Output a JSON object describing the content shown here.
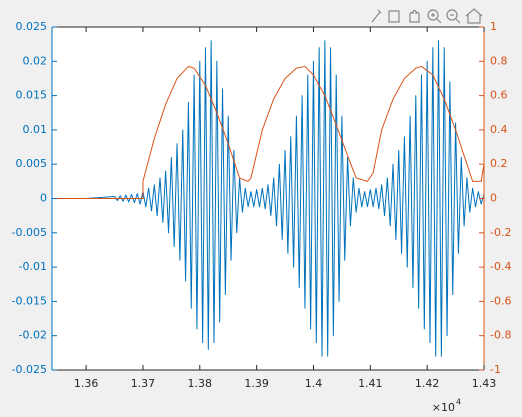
{
  "chart_data": {
    "type": "line",
    "xlim": [
      13540,
      14300
    ],
    "xticks": [
      {
        "value": 13600,
        "label": "1.36"
      },
      {
        "value": 13700,
        "label": "1.37"
      },
      {
        "value": 13800,
        "label": "1.38"
      },
      {
        "value": 13900,
        "label": "1.39"
      },
      {
        "value": 14000,
        "label": "1.4"
      },
      {
        "value": 14100,
        "label": "1.41"
      },
      {
        "value": 14200,
        "label": "1.42"
      },
      {
        "value": 14300,
        "label": "1.43"
      }
    ],
    "x_exponent_base": "×10",
    "x_exponent_power": "4",
    "ylim": [
      -0.025,
      0.025
    ],
    "yticks": [
      -0.025,
      -0.02,
      -0.015,
      -0.01,
      -0.005,
      0,
      0.005,
      0.01,
      0.015,
      0.02,
      0.025
    ],
    "y2lim": [
      -1,
      1
    ],
    "y2ticks": [
      -1,
      -0.8,
      -0.6,
      -0.4,
      -0.2,
      0,
      0.2,
      0.4,
      0.6,
      0.8,
      1
    ],
    "left_axis_color": "#0072bd",
    "right_axis_color": "#d95319",
    "series": [
      {
        "color": "#0072bd",
        "x": [
          13540,
          13600,
          13650,
          13655,
          13660,
          13665,
          13670,
          13675,
          13680,
          13685,
          13690,
          13695,
          13700,
          13705,
          13710,
          13715,
          13720,
          13725,
          13730,
          13735,
          13740,
          13745,
          13750,
          13755,
          13760,
          13765,
          13770,
          13775,
          13780,
          13785,
          13790,
          13795,
          13800,
          13805,
          13810,
          13815,
          13820,
          13825,
          13830,
          13835,
          13840,
          13845,
          13850,
          13855,
          13860,
          13865,
          13870,
          13875,
          13880,
          13885,
          13890,
          13895,
          13900,
          13905,
          13910,
          13915,
          13920,
          13925,
          13930,
          13935,
          13940,
          13945,
          13950,
          13955,
          13960,
          13965,
          13970,
          13975,
          13980,
          13985,
          13990,
          13995,
          14000,
          14005,
          14010,
          14015,
          14020,
          14025,
          14030,
          14035,
          14040,
          14045,
          14050,
          14055,
          14060,
          14065,
          14070,
          14075,
          14080,
          14085,
          14090,
          14095,
          14100,
          14105,
          14110,
          14115,
          14120,
          14125,
          14130,
          14135,
          14140,
          14145,
          14150,
          14155,
          14160,
          14165,
          14170,
          14175,
          14180,
          14185,
          14190,
          14195,
          14200,
          14205,
          14210,
          14215,
          14220,
          14225,
          14230,
          14235,
          14240,
          14245,
          14250,
          14255,
          14260,
          14265,
          14270,
          14275,
          14280,
          14285,
          14290,
          14295,
          14300
        ],
        "values": [
          0,
          0,
          0.0003,
          -0.0003,
          0.0004,
          -0.0004,
          0.0005,
          -0.0005,
          0.0006,
          -0.0006,
          0.0007,
          -0.0008,
          0.001,
          -0.0012,
          0.0015,
          -0.0018,
          0.002,
          -0.0025,
          0.003,
          -0.0035,
          0.004,
          -0.005,
          0.006,
          -0.007,
          0.008,
          -0.009,
          0.01,
          -0.012,
          0.014,
          -0.016,
          0.018,
          -0.019,
          0.02,
          -0.021,
          0.022,
          -0.022,
          0.023,
          -0.021,
          0.02,
          -0.018,
          0.016,
          -0.014,
          0.012,
          -0.009,
          0.007,
          -0.005,
          0.003,
          -0.002,
          0.0015,
          -0.0012,
          0.001,
          -0.0012,
          0.0013,
          -0.0012,
          0.0015,
          -0.0015,
          0.002,
          -0.0025,
          0.003,
          -0.004,
          0.005,
          -0.006,
          0.007,
          -0.008,
          0.009,
          -0.01,
          0.012,
          -0.013,
          0.015,
          -0.016,
          0.018,
          -0.019,
          0.02,
          -0.021,
          0.022,
          -0.023,
          0.023,
          -0.023,
          0.022,
          -0.02,
          0.018,
          -0.015,
          0.012,
          -0.009,
          0.006,
          -0.004,
          0.003,
          -0.002,
          0.0015,
          -0.0012,
          0.001,
          -0.0012,
          0.0013,
          -0.0012,
          0.0015,
          -0.0015,
          0.002,
          -0.0025,
          0.003,
          -0.004,
          0.005,
          -0.006,
          0.007,
          -0.008,
          0.009,
          -0.01,
          0.012,
          -0.013,
          0.015,
          -0.016,
          0.018,
          -0.019,
          0.02,
          -0.021,
          0.022,
          -0.023,
          0.023,
          -0.023,
          0.022,
          -0.02,
          0.017,
          -0.014,
          0.011,
          -0.008,
          0.006,
          -0.004,
          0.003,
          -0.002,
          0.0015,
          -0.0012,
          0.001,
          -0.0008,
          0.0006
        ]
      },
      {
        "color": "#d95319",
        "axis": "y2",
        "x": [
          13540,
          13700,
          13700,
          13720,
          13740,
          13760,
          13780,
          13790,
          13810,
          13830,
          13850,
          13870,
          13885,
          13890,
          13910,
          13930,
          13950,
          13970,
          13985,
          14000,
          14020,
          14040,
          14060,
          14075,
          14095,
          14105,
          14120,
          14140,
          14160,
          14180,
          14190,
          14210,
          14230,
          14250,
          14270,
          14280,
          14295,
          14300
        ],
        "values": [
          0,
          0,
          0.1,
          0.35,
          0.55,
          0.7,
          0.77,
          0.76,
          0.66,
          0.5,
          0.32,
          0.12,
          0.1,
          0.12,
          0.4,
          0.58,
          0.7,
          0.76,
          0.77,
          0.72,
          0.6,
          0.43,
          0.25,
          0.12,
          0.1,
          0.15,
          0.4,
          0.58,
          0.7,
          0.76,
          0.77,
          0.72,
          0.58,
          0.4,
          0.2,
          0.1,
          0.1,
          0.2
        ]
      }
    ]
  }
}
